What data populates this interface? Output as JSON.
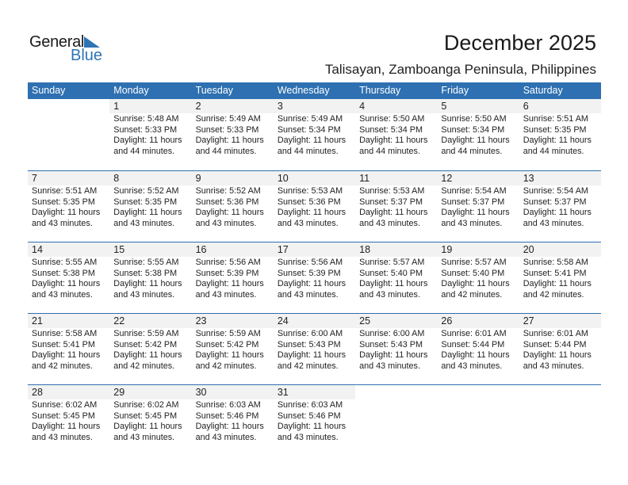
{
  "logo": {
    "text_general": "General",
    "text_blue": "Blue",
    "accent": "#2e74b5"
  },
  "header": {
    "title": "December 2025",
    "subtitle": "Talisayan, Zamboanga Peninsula, Philippines"
  },
  "colors": {
    "header_bar": "#2e70b1",
    "date_strip": "#f2f2f2"
  },
  "weekdays": [
    "Sunday",
    "Monday",
    "Tuesday",
    "Wednesday",
    "Thursday",
    "Friday",
    "Saturday"
  ],
  "weeks": [
    [
      null,
      {
        "day": "1",
        "sunrise": "Sunrise: 5:48 AM",
        "sunset": "Sunset: 5:33 PM",
        "daylight": "Daylight: 11 hours",
        "minutes": "and 44 minutes."
      },
      {
        "day": "2",
        "sunrise": "Sunrise: 5:49 AM",
        "sunset": "Sunset: 5:33 PM",
        "daylight": "Daylight: 11 hours",
        "minutes": "and 44 minutes."
      },
      {
        "day": "3",
        "sunrise": "Sunrise: 5:49 AM",
        "sunset": "Sunset: 5:34 PM",
        "daylight": "Daylight: 11 hours",
        "minutes": "and 44 minutes."
      },
      {
        "day": "4",
        "sunrise": "Sunrise: 5:50 AM",
        "sunset": "Sunset: 5:34 PM",
        "daylight": "Daylight: 11 hours",
        "minutes": "and 44 minutes."
      },
      {
        "day": "5",
        "sunrise": "Sunrise: 5:50 AM",
        "sunset": "Sunset: 5:34 PM",
        "daylight": "Daylight: 11 hours",
        "minutes": "and 44 minutes."
      },
      {
        "day": "6",
        "sunrise": "Sunrise: 5:51 AM",
        "sunset": "Sunset: 5:35 PM",
        "daylight": "Daylight: 11 hours",
        "minutes": "and 44 minutes."
      }
    ],
    [
      {
        "day": "7",
        "sunrise": "Sunrise: 5:51 AM",
        "sunset": "Sunset: 5:35 PM",
        "daylight": "Daylight: 11 hours",
        "minutes": "and 43 minutes."
      },
      {
        "day": "8",
        "sunrise": "Sunrise: 5:52 AM",
        "sunset": "Sunset: 5:35 PM",
        "daylight": "Daylight: 11 hours",
        "minutes": "and 43 minutes."
      },
      {
        "day": "9",
        "sunrise": "Sunrise: 5:52 AM",
        "sunset": "Sunset: 5:36 PM",
        "daylight": "Daylight: 11 hours",
        "minutes": "and 43 minutes."
      },
      {
        "day": "10",
        "sunrise": "Sunrise: 5:53 AM",
        "sunset": "Sunset: 5:36 PM",
        "daylight": "Daylight: 11 hours",
        "minutes": "and 43 minutes."
      },
      {
        "day": "11",
        "sunrise": "Sunrise: 5:53 AM",
        "sunset": "Sunset: 5:37 PM",
        "daylight": "Daylight: 11 hours",
        "minutes": "and 43 minutes."
      },
      {
        "day": "12",
        "sunrise": "Sunrise: 5:54 AM",
        "sunset": "Sunset: 5:37 PM",
        "daylight": "Daylight: 11 hours",
        "minutes": "and 43 minutes."
      },
      {
        "day": "13",
        "sunrise": "Sunrise: 5:54 AM",
        "sunset": "Sunset: 5:37 PM",
        "daylight": "Daylight: 11 hours",
        "minutes": "and 43 minutes."
      }
    ],
    [
      {
        "day": "14",
        "sunrise": "Sunrise: 5:55 AM",
        "sunset": "Sunset: 5:38 PM",
        "daylight": "Daylight: 11 hours",
        "minutes": "and 43 minutes."
      },
      {
        "day": "15",
        "sunrise": "Sunrise: 5:55 AM",
        "sunset": "Sunset: 5:38 PM",
        "daylight": "Daylight: 11 hours",
        "minutes": "and 43 minutes."
      },
      {
        "day": "16",
        "sunrise": "Sunrise: 5:56 AM",
        "sunset": "Sunset: 5:39 PM",
        "daylight": "Daylight: 11 hours",
        "minutes": "and 43 minutes."
      },
      {
        "day": "17",
        "sunrise": "Sunrise: 5:56 AM",
        "sunset": "Sunset: 5:39 PM",
        "daylight": "Daylight: 11 hours",
        "minutes": "and 43 minutes."
      },
      {
        "day": "18",
        "sunrise": "Sunrise: 5:57 AM",
        "sunset": "Sunset: 5:40 PM",
        "daylight": "Daylight: 11 hours",
        "minutes": "and 43 minutes."
      },
      {
        "day": "19",
        "sunrise": "Sunrise: 5:57 AM",
        "sunset": "Sunset: 5:40 PM",
        "daylight": "Daylight: 11 hours",
        "minutes": "and 42 minutes."
      },
      {
        "day": "20",
        "sunrise": "Sunrise: 5:58 AM",
        "sunset": "Sunset: 5:41 PM",
        "daylight": "Daylight: 11 hours",
        "minutes": "and 42 minutes."
      }
    ],
    [
      {
        "day": "21",
        "sunrise": "Sunrise: 5:58 AM",
        "sunset": "Sunset: 5:41 PM",
        "daylight": "Daylight: 11 hours",
        "minutes": "and 42 minutes."
      },
      {
        "day": "22",
        "sunrise": "Sunrise: 5:59 AM",
        "sunset": "Sunset: 5:42 PM",
        "daylight": "Daylight: 11 hours",
        "minutes": "and 42 minutes."
      },
      {
        "day": "23",
        "sunrise": "Sunrise: 5:59 AM",
        "sunset": "Sunset: 5:42 PM",
        "daylight": "Daylight: 11 hours",
        "minutes": "and 42 minutes."
      },
      {
        "day": "24",
        "sunrise": "Sunrise: 6:00 AM",
        "sunset": "Sunset: 5:43 PM",
        "daylight": "Daylight: 11 hours",
        "minutes": "and 42 minutes."
      },
      {
        "day": "25",
        "sunrise": "Sunrise: 6:00 AM",
        "sunset": "Sunset: 5:43 PM",
        "daylight": "Daylight: 11 hours",
        "minutes": "and 43 minutes."
      },
      {
        "day": "26",
        "sunrise": "Sunrise: 6:01 AM",
        "sunset": "Sunset: 5:44 PM",
        "daylight": "Daylight: 11 hours",
        "minutes": "and 43 minutes."
      },
      {
        "day": "27",
        "sunrise": "Sunrise: 6:01 AM",
        "sunset": "Sunset: 5:44 PM",
        "daylight": "Daylight: 11 hours",
        "minutes": "and 43 minutes."
      }
    ],
    [
      {
        "day": "28",
        "sunrise": "Sunrise: 6:02 AM",
        "sunset": "Sunset: 5:45 PM",
        "daylight": "Daylight: 11 hours",
        "minutes": "and 43 minutes."
      },
      {
        "day": "29",
        "sunrise": "Sunrise: 6:02 AM",
        "sunset": "Sunset: 5:45 PM",
        "daylight": "Daylight: 11 hours",
        "minutes": "and 43 minutes."
      },
      {
        "day": "30",
        "sunrise": "Sunrise: 6:03 AM",
        "sunset": "Sunset: 5:46 PM",
        "daylight": "Daylight: 11 hours",
        "minutes": "and 43 minutes."
      },
      {
        "day": "31",
        "sunrise": "Sunrise: 6:03 AM",
        "sunset": "Sunset: 5:46 PM",
        "daylight": "Daylight: 11 hours",
        "minutes": "and 43 minutes."
      },
      null,
      null,
      null
    ]
  ]
}
